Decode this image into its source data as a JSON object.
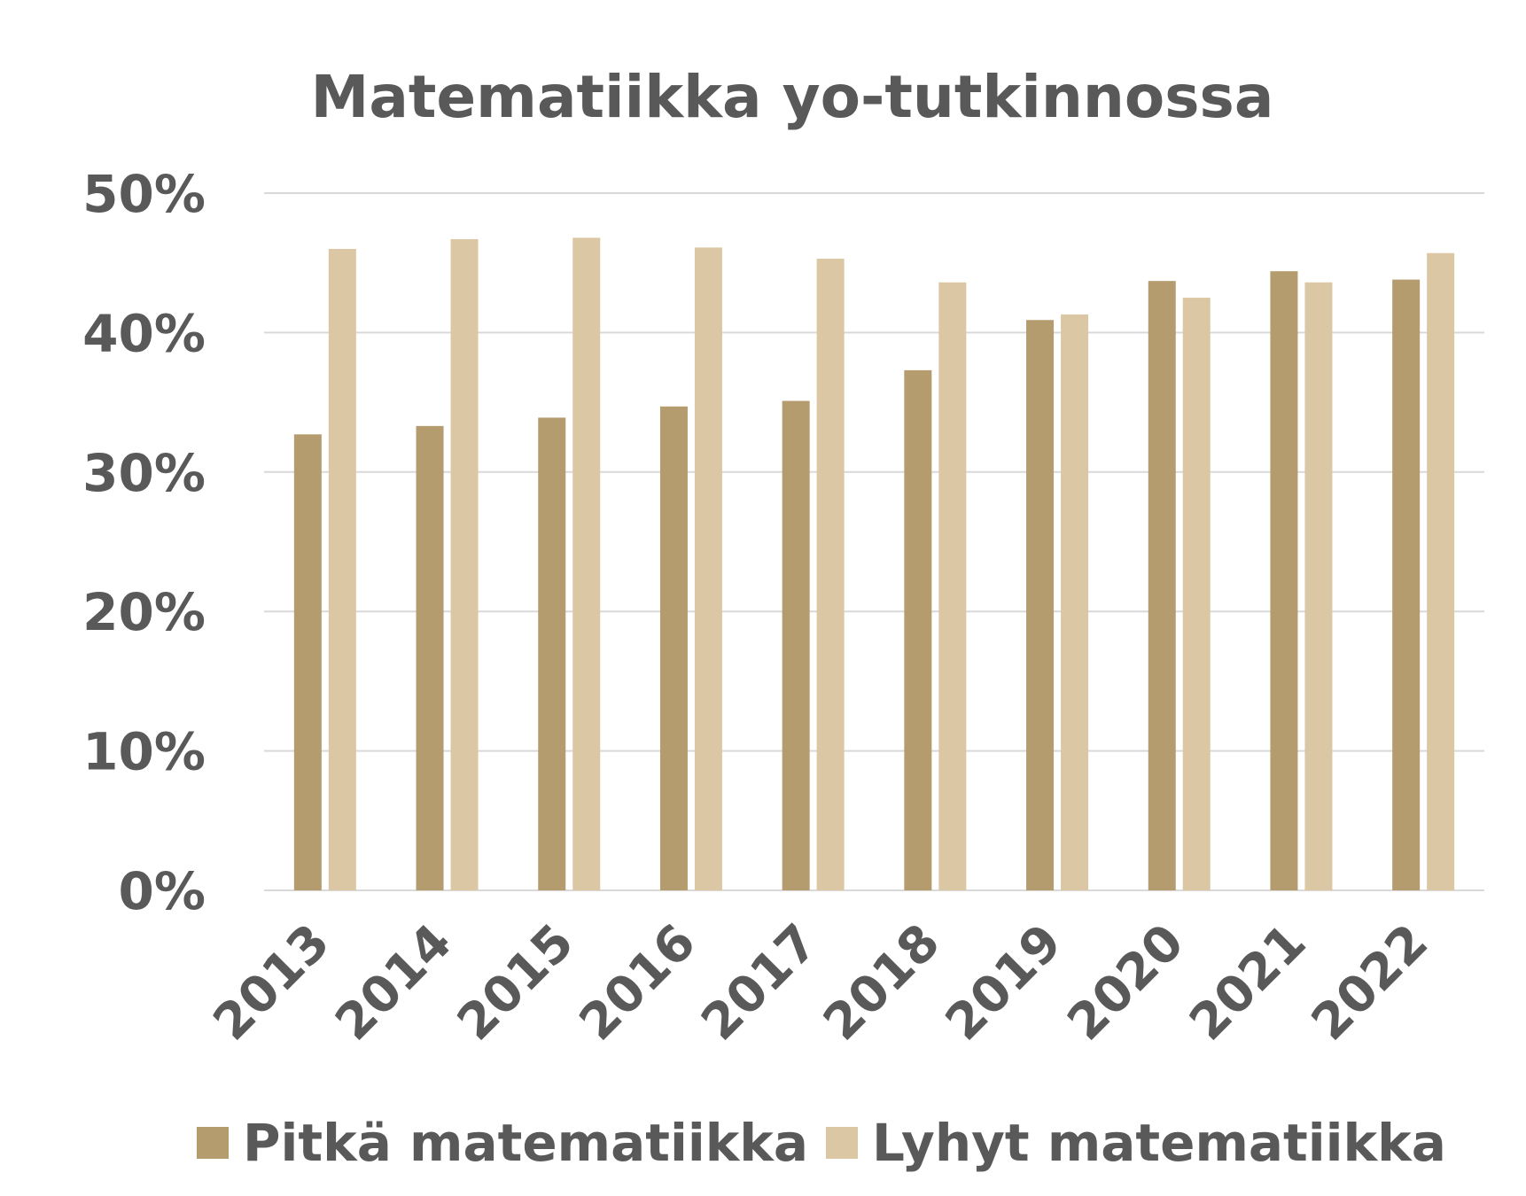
{
  "chart_data": {
    "type": "bar",
    "title": "Matematiikka yo-tutkinnossa",
    "xlabel": "",
    "ylabel": "",
    "ylim": [
      0,
      50
    ],
    "yticks": [
      "0%",
      "10%",
      "20%",
      "30%",
      "40%",
      "50%"
    ],
    "ytick_values": [
      0,
      10,
      20,
      30,
      40,
      50
    ],
    "grid": true,
    "legend_position": "bottom",
    "categories": [
      "2013",
      "2014",
      "2015",
      "2016",
      "2017",
      "2018",
      "2019",
      "2020",
      "2021",
      "2022"
    ],
    "series": [
      {
        "name": "Pitkä matematiikka",
        "color": "#b59c6e",
        "values": [
          32.7,
          33.3,
          33.9,
          34.7,
          35.1,
          37.3,
          40.9,
          43.7,
          44.4,
          43.8
        ]
      },
      {
        "name": "Lyhyt matematiikka",
        "color": "#dcc7a4",
        "values": [
          46.0,
          46.7,
          46.8,
          46.1,
          45.3,
          43.6,
          41.3,
          42.5,
          43.6,
          45.7
        ]
      }
    ]
  }
}
